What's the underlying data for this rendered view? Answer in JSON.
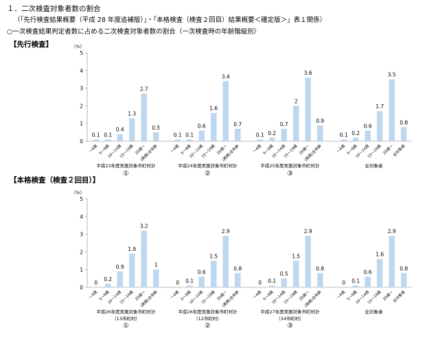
{
  "header": {
    "title": "１．二次検査対象者数の割合",
    "subtitle": "（「先行検査結果概要（平成 28 年度追補版）」・「本格検査（検査２回目）結果概要＜確定版＞」表１関係）",
    "description": "○一次検査結果判定者数に占める二次検査対象者数の割合（一次検査時の年齢階級別）"
  },
  "sections": [
    {
      "label": "【先行検査】"
    },
    {
      "label": "【本格検査（検査２回目）】"
    }
  ],
  "unit_label": "（%）",
  "colors": {
    "bar": "#bdd7ee",
    "axis": "#a6a6a6"
  },
  "chart_data": [
    {
      "type": "bar",
      "categories": [
        "～4歳",
        "5～9歳",
        "10～14歳",
        "15～19歳",
        "20歳～",
        "(再掲)全年齢"
      ],
      "series": [
        {
          "name": "",
          "values": [
            0.1,
            0.1,
            0.4,
            1.3,
            2.7,
            0.5
          ]
        },
        {
          "name": "",
          "values": [
            0.1,
            0.1,
            0.6,
            1.6,
            3.4,
            0.7
          ]
        },
        {
          "name": "",
          "values": [
            0.1,
            0.2,
            0.7,
            2,
            3.6,
            0.9
          ]
        },
        {
          "name": "",
          "values": [
            0.1,
            0.2,
            0.6,
            1.7,
            3.5,
            0.8
          ]
        }
      ],
      "group_labels": [
        "平成23年度実施対象市町村計",
        "平成24年度実施対象市町村計",
        "平成25年度実施対象市町村計",
        "全対象者"
      ],
      "group_sublabels": [
        "",
        "",
        "",
        ""
      ],
      "group_numbers": [
        "①",
        "②",
        "③",
        ""
      ],
      "last_category_labels": [
        "(再掲)全年齢",
        "(再掲)全年齢",
        "(再掲)全年齢",
        "全対象者"
      ],
      "ylabel": "（%）",
      "ylim": [
        0,
        5
      ],
      "yticks": [
        0,
        1,
        2,
        3,
        4,
        5
      ]
    },
    {
      "type": "bar",
      "categories": [
        "～4歳",
        "5～9歳",
        "10～14歳",
        "15～19歳",
        "20歳～",
        "(再掲)全年齢"
      ],
      "series": [
        {
          "name": "",
          "values": [
            0,
            0.2,
            0.9,
            1.9,
            3.2,
            1
          ]
        },
        {
          "name": "",
          "values": [
            0,
            0.1,
            0.6,
            1.5,
            2.9,
            0.8
          ]
        },
        {
          "name": "",
          "values": [
            0,
            0.1,
            0.5,
            1.5,
            2.9,
            0.8
          ]
        },
        {
          "name": "",
          "values": [
            0,
            0.1,
            0.6,
            1.6,
            2.9,
            0.8
          ]
        }
      ],
      "group_labels": [
        "平成26年度実施対象市町村計",
        "平成26年度実施対象市町村計",
        "平成27年度実施対象市町村計",
        "全対象者"
      ],
      "group_sublabels": [
        "（13市町村）",
        "（12市町村）",
        "（34市町村）",
        ""
      ],
      "group_numbers": [
        "①",
        "②",
        "③",
        ""
      ],
      "last_category_labels": [
        "(再掲)全年齢",
        "(再掲)全年齢",
        "(再掲)全年齢",
        "全対象者"
      ],
      "ylabel": "（%）",
      "ylim": [
        0,
        5
      ],
      "yticks": [
        0,
        1,
        2,
        3,
        4,
        5
      ]
    }
  ]
}
